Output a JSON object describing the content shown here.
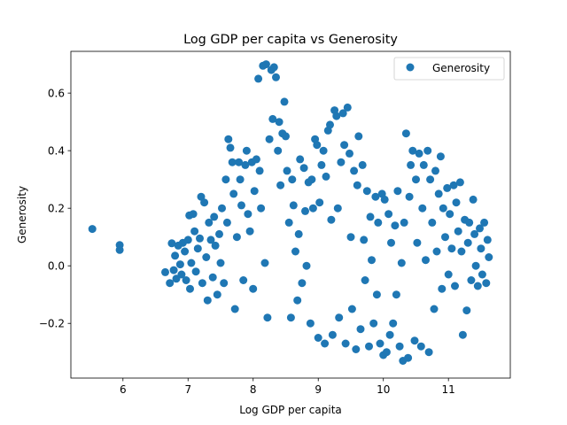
{
  "chart_data": {
    "type": "scatter",
    "title": "Log GDP per capita vs Generosity",
    "xlabel": "Log GDP per capita",
    "ylabel": "Generosity",
    "xlim": [
      5.2,
      11.95
    ],
    "ylim": [
      -0.39,
      0.745
    ],
    "xticks": [
      6,
      7,
      8,
      9,
      10,
      11
    ],
    "yticks": [
      -0.2,
      0.0,
      0.2,
      0.4,
      0.6
    ],
    "ytick_labels": [
      "−0.2",
      "0.0",
      "0.2",
      "0.4",
      "0.6"
    ],
    "grid": false,
    "legend_position": "top-right",
    "color": "#1f77b4",
    "series": [
      {
        "name": "Generosity",
        "cluster_note": "dense point cloud",
        "points": [
          [
            5.53,
            0.128
          ],
          [
            5.95,
            0.072
          ],
          [
            5.95,
            0.055
          ],
          [
            6.65,
            -0.022
          ],
          [
            6.72,
            -0.06
          ],
          [
            6.75,
            0.078
          ],
          [
            6.78,
            -0.015
          ],
          [
            6.8,
            0.035
          ],
          [
            6.82,
            -0.045
          ],
          [
            6.85,
            0.07
          ],
          [
            6.88,
            0.005
          ],
          [
            6.9,
            -0.03
          ],
          [
            6.92,
            0.08
          ],
          [
            6.95,
            0.05
          ],
          [
            6.97,
            -0.05
          ],
          [
            7.0,
            0.09
          ],
          [
            7.02,
            0.175
          ],
          [
            7.03,
            -0.08
          ],
          [
            7.05,
            0.01
          ],
          [
            7.08,
            0.18
          ],
          [
            7.1,
            0.12
          ],
          [
            7.12,
            -0.02
          ],
          [
            7.15,
            0.06
          ],
          [
            7.18,
            0.095
          ],
          [
            7.2,
            0.24
          ],
          [
            7.22,
            -0.06
          ],
          [
            7.25,
            0.22
          ],
          [
            7.28,
            0.03
          ],
          [
            7.3,
            -0.12
          ],
          [
            7.32,
            0.15
          ],
          [
            7.35,
            0.09
          ],
          [
            7.38,
            -0.04
          ],
          [
            7.4,
            0.17
          ],
          [
            7.42,
            0.07
          ],
          [
            7.45,
            -0.1
          ],
          [
            7.48,
            0.11
          ],
          [
            7.5,
            0.01
          ],
          [
            7.52,
            0.2
          ],
          [
            7.55,
            -0.06
          ],
          [
            7.58,
            0.3
          ],
          [
            7.6,
            0.15
          ],
          [
            7.62,
            0.44
          ],
          [
            7.65,
            0.41
          ],
          [
            7.68,
            0.36
          ],
          [
            7.7,
            0.25
          ],
          [
            7.72,
            -0.15
          ],
          [
            7.75,
            0.1
          ],
          [
            7.78,
            0.36
          ],
          [
            7.8,
            0.3
          ],
          [
            7.82,
            0.21
          ],
          [
            7.85,
            -0.05
          ],
          [
            7.88,
            0.35
          ],
          [
            7.9,
            0.4
          ],
          [
            7.92,
            0.18
          ],
          [
            7.95,
            0.12
          ],
          [
            7.98,
            0.36
          ],
          [
            8.0,
            -0.08
          ],
          [
            8.02,
            0.26
          ],
          [
            8.05,
            0.37
          ],
          [
            8.08,
            0.65
          ],
          [
            8.1,
            0.33
          ],
          [
            8.12,
            0.2
          ],
          [
            8.15,
            0.695
          ],
          [
            8.18,
            0.01
          ],
          [
            8.2,
            0.7
          ],
          [
            8.22,
            -0.18
          ],
          [
            8.25,
            0.44
          ],
          [
            8.28,
            0.68
          ],
          [
            8.3,
            0.51
          ],
          [
            8.32,
            0.69
          ],
          [
            8.35,
            0.655
          ],
          [
            8.38,
            0.4
          ],
          [
            8.4,
            0.5
          ],
          [
            8.42,
            0.28
          ],
          [
            8.45,
            0.46
          ],
          [
            8.48,
            0.57
          ],
          [
            8.5,
            0.45
          ],
          [
            8.52,
            0.33
          ],
          [
            8.55,
            0.15
          ],
          [
            8.58,
            -0.18
          ],
          [
            8.6,
            0.3
          ],
          [
            8.62,
            0.21
          ],
          [
            8.65,
            0.05
          ],
          [
            8.68,
            -0.12
          ],
          [
            8.7,
            0.11
          ],
          [
            8.72,
            0.37
          ],
          [
            8.75,
            -0.06
          ],
          [
            8.78,
            0.34
          ],
          [
            8.8,
            0.19
          ],
          [
            8.82,
            0.0
          ],
          [
            8.85,
            0.29
          ],
          [
            8.88,
            -0.2
          ],
          [
            8.9,
            0.3
          ],
          [
            8.92,
            0.2
          ],
          [
            8.95,
            0.44
          ],
          [
            8.98,
            0.42
          ],
          [
            9.0,
            -0.25
          ],
          [
            9.02,
            0.22
          ],
          [
            9.05,
            0.35
          ],
          [
            9.08,
            0.4
          ],
          [
            9.1,
            -0.27
          ],
          [
            9.12,
            0.31
          ],
          [
            9.15,
            0.47
          ],
          [
            9.18,
            0.49
          ],
          [
            9.2,
            0.16
          ],
          [
            9.22,
            -0.24
          ],
          [
            9.25,
            0.54
          ],
          [
            9.28,
            0.52
          ],
          [
            9.3,
            0.2
          ],
          [
            9.32,
            -0.18
          ],
          [
            9.35,
            0.36
          ],
          [
            9.38,
            0.53
          ],
          [
            9.4,
            0.42
          ],
          [
            9.42,
            -0.27
          ],
          [
            9.45,
            0.55
          ],
          [
            9.48,
            0.39
          ],
          [
            9.5,
            0.1
          ],
          [
            9.52,
            -0.15
          ],
          [
            9.55,
            0.33
          ],
          [
            9.58,
            -0.29
          ],
          [
            9.6,
            0.28
          ],
          [
            9.62,
            0.45
          ],
          [
            9.65,
            -0.22
          ],
          [
            9.68,
            0.35
          ],
          [
            9.7,
            0.09
          ],
          [
            9.72,
            -0.05
          ],
          [
            9.75,
            0.26
          ],
          [
            9.78,
            -0.28
          ],
          [
            9.8,
            0.17
          ],
          [
            9.82,
            0.02
          ],
          [
            9.85,
            -0.2
          ],
          [
            9.88,
            0.24
          ],
          [
            9.9,
            -0.1
          ],
          [
            9.92,
            0.15
          ],
          [
            9.95,
            -0.27
          ],
          [
            9.98,
            0.25
          ],
          [
            10.0,
            -0.31
          ],
          [
            10.02,
            0.23
          ],
          [
            10.05,
            -0.3
          ],
          [
            10.08,
            0.18
          ],
          [
            10.1,
            -0.24
          ],
          [
            10.12,
            0.08
          ],
          [
            10.15,
            -0.2
          ],
          [
            10.18,
            0.14
          ],
          [
            10.2,
            -0.1
          ],
          [
            10.22,
            0.26
          ],
          [
            10.25,
            -0.28
          ],
          [
            10.28,
            0.01
          ],
          [
            10.3,
            -0.33
          ],
          [
            10.32,
            0.15
          ],
          [
            10.35,
            0.46
          ],
          [
            10.38,
            -0.32
          ],
          [
            10.4,
            0.24
          ],
          [
            10.42,
            0.35
          ],
          [
            10.45,
            0.4
          ],
          [
            10.48,
            -0.26
          ],
          [
            10.5,
            0.3
          ],
          [
            10.52,
            0.08
          ],
          [
            10.55,
            0.39
          ],
          [
            10.58,
            -0.28
          ],
          [
            10.6,
            0.2
          ],
          [
            10.62,
            0.35
          ],
          [
            10.65,
            0.02
          ],
          [
            10.68,
            0.4
          ],
          [
            10.7,
            -0.3
          ],
          [
            10.72,
            0.3
          ],
          [
            10.75,
            0.15
          ],
          [
            10.78,
            -0.15
          ],
          [
            10.8,
            0.33
          ],
          [
            10.82,
            0.05
          ],
          [
            10.85,
            0.25
          ],
          [
            10.88,
            0.38
          ],
          [
            10.9,
            -0.08
          ],
          [
            10.92,
            0.2
          ],
          [
            10.95,
            0.1
          ],
          [
            10.98,
            0.27
          ],
          [
            11.0,
            -0.03
          ],
          [
            11.02,
            0.18
          ],
          [
            11.05,
            0.06
          ],
          [
            11.08,
            0.28
          ],
          [
            11.1,
            -0.07
          ],
          [
            11.12,
            0.22
          ],
          [
            11.15,
            0.12
          ],
          [
            11.18,
            0.29
          ],
          [
            11.2,
            0.05
          ],
          [
            11.22,
            -0.24
          ],
          [
            11.25,
            0.16
          ],
          [
            11.28,
            -0.155
          ],
          [
            11.3,
            0.08
          ],
          [
            11.32,
            0.15
          ],
          [
            11.35,
            -0.05
          ],
          [
            11.38,
            0.23
          ],
          [
            11.4,
            0.11
          ],
          [
            11.42,
            0.0
          ],
          [
            11.45,
            -0.07
          ],
          [
            11.48,
            0.13
          ],
          [
            11.5,
            0.06
          ],
          [
            11.52,
            -0.03
          ],
          [
            11.55,
            0.15
          ],
          [
            11.58,
            -0.06
          ],
          [
            11.6,
            0.09
          ],
          [
            11.62,
            0.03
          ]
        ]
      }
    ]
  }
}
